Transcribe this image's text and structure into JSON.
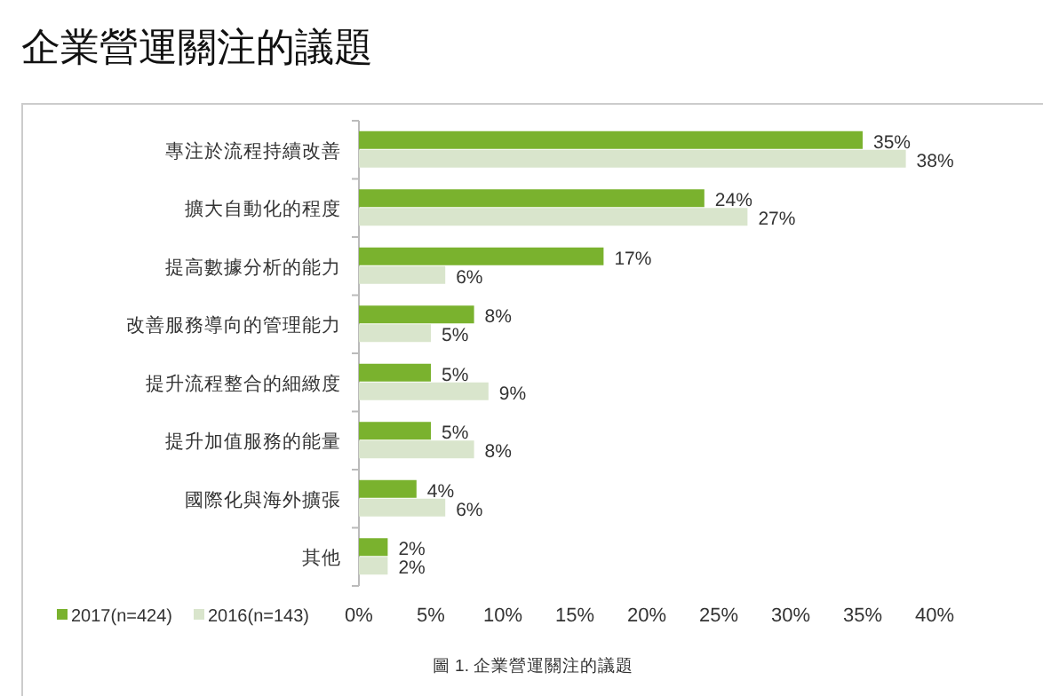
{
  "chart_data": {
    "type": "bar",
    "orientation": "horizontal",
    "title": "企業營運關注的議題",
    "categories": [
      "專注於流程持續改善",
      "擴大自動化的程度",
      "提高數據分析的能力",
      "改善服務導向的管理能力",
      "提升流程整合的細緻度",
      "提升加值服務的能量",
      "國際化與海外擴張",
      "其他"
    ],
    "series": [
      {
        "name": "2017(n=424)",
        "color": "#7ab22e",
        "values": [
          35,
          24,
          17,
          8,
          5,
          5,
          4,
          2
        ],
        "value_labels": [
          "35%",
          "24%",
          "17%",
          "8%",
          "5%",
          "5%",
          "4%",
          "2%"
        ]
      },
      {
        "name": "2016(n=143)",
        "color": "#d9e5cc",
        "values": [
          38,
          27,
          6,
          5,
          9,
          8,
          6,
          2
        ],
        "value_labels": [
          "38%",
          "27%",
          "6%",
          "5%",
          "9%",
          "8%",
          "6%",
          "2%"
        ]
      }
    ],
    "xlim": [
      0,
      40
    ],
    "xticks": [
      {
        "value": 0,
        "label": "0%"
      },
      {
        "value": 5,
        "label": "5%"
      },
      {
        "value": 10,
        "label": "10%"
      },
      {
        "value": 15,
        "label": "15%"
      },
      {
        "value": 20,
        "label": "20%"
      },
      {
        "value": 25,
        "label": "25%"
      },
      {
        "value": 30,
        "label": "30%"
      },
      {
        "value": 35,
        "label": "35%"
      },
      {
        "value": 40,
        "label": "40%"
      }
    ],
    "grid": false,
    "legend": "bottom left",
    "annotations": [
      "圖 1. 企業營運關注的議題"
    ]
  }
}
